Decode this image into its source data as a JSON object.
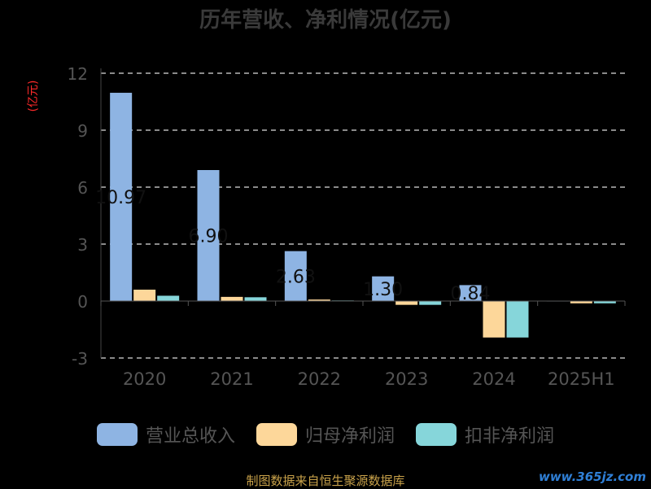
{
  "chart_data": {
    "type": "bar",
    "title": "历年营收、净利情况(亿元)",
    "ylabel": "(亿元)",
    "categories": [
      "2020",
      "2021",
      "2022",
      "2023",
      "2024",
      "2025H1"
    ],
    "series": [
      {
        "name": "营业总收入",
        "color": "#8eb4e3",
        "values": [
          10.97,
          6.9,
          2.63,
          1.3,
          0.84,
          0.02
        ]
      },
      {
        "name": "归母净利润",
        "color": "#fdd79a",
        "values": [
          0.6,
          0.22,
          0.08,
          -0.2,
          -1.92,
          -0.12
        ]
      },
      {
        "name": "扣非净利润",
        "color": "#86d6da",
        "values": [
          0.28,
          0.2,
          0.03,
          -0.2,
          -1.92,
          -0.12
        ]
      }
    ],
    "data_labels": [
      "10.97",
      "6.90",
      "2.63",
      "1.30",
      "0.84",
      ""
    ],
    "ylim": [
      -3,
      12
    ],
    "yticks": [
      -3,
      0,
      3,
      6,
      9,
      12
    ],
    "grid": true,
    "legend_position": "bottom"
  },
  "footer": {
    "source": "制图数据来自恒生聚源数据库",
    "watermark": "www.365jz.com"
  }
}
